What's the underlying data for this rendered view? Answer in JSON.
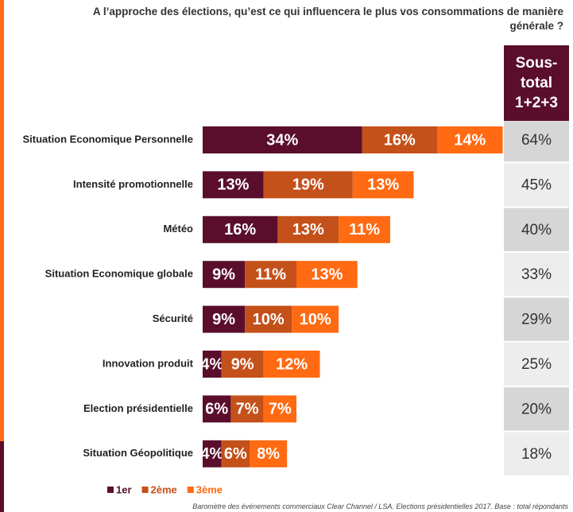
{
  "chart_data": {
    "type": "stacked-bar-horizontal",
    "title": "A l’approche des élections, qu’est ce qui influencera le plus vos consommations de manière générale ?",
    "categories": [
      "Situation Economique Personnelle",
      "Intensité promotionnelle",
      "Météo",
      "Situation Economique globale",
      "Sécurité",
      "Innovation produit",
      "Election présidentielle",
      "Situation Géopolitique"
    ],
    "series": [
      {
        "name": "1er",
        "color": "#5a0e2c",
        "values": [
          34,
          13,
          16,
          9,
          9,
          4,
          6,
          4
        ],
        "value_labels": [
          "34%",
          "13%",
          "16%",
          "9%",
          "9%",
          "4%",
          "6%",
          "4%"
        ]
      },
      {
        "name": "2ème",
        "color": "#c4501a",
        "values": [
          16,
          19,
          13,
          11,
          10,
          9,
          7,
          6
        ],
        "value_labels": [
          "16%",
          "19%",
          "13%",
          "11%",
          "10%",
          "9%",
          "7%",
          "6%"
        ]
      },
      {
        "name": "3ème",
        "color": "#ff6a12",
        "values": [
          14,
          13,
          11,
          13,
          10,
          12,
          7,
          8
        ],
        "value_labels": [
          "14%",
          "13%",
          "11%",
          "13%",
          "10%",
          "12%",
          "7%",
          "8%"
        ]
      }
    ],
    "subtotal": {
      "title": "Sous-total 1+2+3",
      "values": [
        64,
        45,
        40,
        33,
        29,
        25,
        20,
        18
      ],
      "value_labels": [
        "64%",
        "45%",
        "40%",
        "33%",
        "29%",
        "25%",
        "20%",
        "18%"
      ]
    },
    "footnote": "Baromètre des événements commerciaux Clear Channel / LSA. Elections présidentielles 2017. Base : total répondants"
  }
}
